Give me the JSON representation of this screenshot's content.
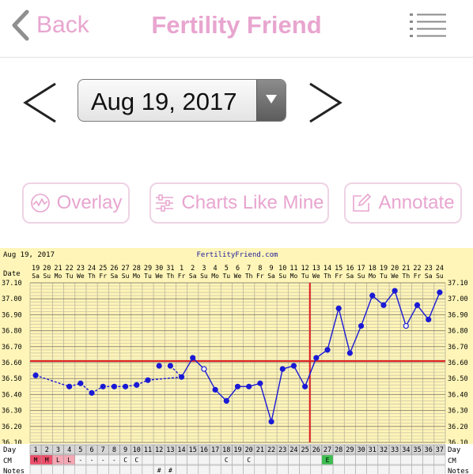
{
  "header": {
    "back_label": "Back",
    "title": "Fertility Friend",
    "back_icon": "chevron-left-icon",
    "menu_icon": "list-menu-icon"
  },
  "date_picker": {
    "value": "Aug 19, 2017",
    "prev_icon": "chevron-left-icon",
    "next_icon": "chevron-right-icon"
  },
  "buttons": {
    "overlay": "Overlay",
    "charts_like_mine": "Charts Like Mine",
    "annotate": "Annotate"
  },
  "colors": {
    "accent": "#e8a5cf",
    "chart_bg": "#fff5b8",
    "temp_line": "#1a1ad6",
    "coverline": "#e02020"
  },
  "chart_data": {
    "type": "line",
    "title_left": "Aug 19, 2017",
    "title_center": "FertilityFriend.com",
    "dates": [
      "19",
      "20",
      "21",
      "22",
      "23",
      "24",
      "25",
      "26",
      "27",
      "28",
      "29",
      "30",
      "31",
      "1",
      "2",
      "3",
      "4",
      "5",
      "6",
      "7",
      "8",
      "9",
      "10",
      "11",
      "12",
      "13",
      "14",
      "15",
      "16",
      "17",
      "18",
      "19",
      "20",
      "21",
      "22",
      "23",
      "24"
    ],
    "weekdays": [
      "Sa",
      "Su",
      "Mo",
      "Tu",
      "We",
      "Th",
      "Fr",
      "Sa",
      "Su",
      "Mo",
      "Tu",
      "We",
      "Th",
      "Fr",
      "Sa",
      "Su",
      "Mo",
      "Tu",
      "We",
      "Th",
      "Fr",
      "Sa",
      "Su",
      "Mo",
      "Tu",
      "We",
      "Th",
      "Fr",
      "Sa",
      "Su",
      "Mo",
      "Tu",
      "We",
      "Th",
      "Fr",
      "Sa",
      "Su"
    ],
    "days": [
      "1",
      "2",
      "3",
      "4",
      "5",
      "6",
      "7",
      "8",
      "9",
      "10",
      "11",
      "12",
      "13",
      "14",
      "15",
      "16",
      "17",
      "18",
      "19",
      "20",
      "21",
      "22",
      "23",
      "24",
      "25",
      "26",
      "27",
      "28",
      "29",
      "30",
      "31",
      "32",
      "33",
      "34",
      "35",
      "36",
      "37"
    ],
    "temps": [
      36.52,
      null,
      null,
      36.45,
      36.47,
      36.41,
      36.45,
      36.45,
      36.45,
      36.46,
      36.49,
      36.58,
      36.58,
      36.51,
      36.63,
      36.56,
      36.43,
      36.36,
      36.45,
      36.45,
      36.47,
      36.23,
      36.56,
      36.58,
      36.45,
      36.63,
      36.68,
      36.94,
      36.66,
      36.83,
      37.02,
      36.96,
      37.05,
      36.83,
      36.96,
      36.87,
      37.04
    ],
    "open_points": [
      16,
      34
    ],
    "y_ticks": [
      "37.10",
      "37.00",
      "36.90",
      "36.80",
      "36.70",
      "36.60",
      "36.50",
      "36.40",
      "36.30",
      "36.20",
      "36.10"
    ],
    "ylim": [
      36.1,
      37.1
    ],
    "coverline": 36.61,
    "ovulation_day": 25,
    "row_labels": {
      "date": "Date",
      "day": "Day",
      "cm": "CM",
      "notes": "Notes"
    },
    "cm": [
      "M",
      "M",
      "L",
      "L",
      "-",
      "-",
      "-",
      "-",
      "C",
      "C",
      "",
      "",
      "",
      "",
      "",
      "",
      "",
      "C",
      "",
      "C",
      "",
      "",
      "",
      "",
      "",
      "",
      "E",
      "",
      "",
      "",
      "",
      "",
      "",
      "",
      "",
      "",
      ""
    ],
    "notes": [
      "",
      "",
      "",
      "",
      "",
      "",
      "",
      "",
      "",
      "",
      "",
      "#",
      "#",
      "",
      "",
      "",
      "",
      "",
      "",
      "",
      "",
      "",
      "",
      "",
      "",
      "",
      "",
      "",
      "",
      "",
      "",
      "",
      "",
      "",
      "",
      "",
      ""
    ]
  }
}
